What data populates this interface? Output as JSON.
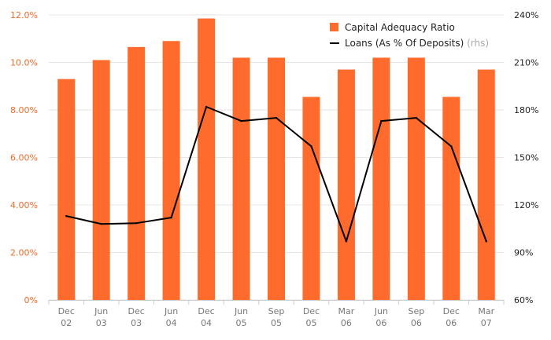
{
  "chart_data": {
    "type": "bar",
    "categories": [
      [
        "Dec",
        "02"
      ],
      [
        "Jun",
        "03"
      ],
      [
        "Dec",
        "03"
      ],
      [
        "Jun",
        "04"
      ],
      [
        "Dec",
        "04"
      ],
      [
        "Jun",
        "05"
      ],
      [
        "Sep",
        "05"
      ],
      [
        "Dec",
        "05"
      ],
      [
        "Mar",
        "06"
      ],
      [
        "Jun",
        "06"
      ],
      [
        "Sep",
        "06"
      ],
      [
        "Dec",
        "06"
      ],
      [
        "Mar",
        "07"
      ]
    ],
    "series": [
      {
        "name": "Capital Adequacy Ratio",
        "type": "bar",
        "axis": "left",
        "color": "#fe6b2c",
        "values": [
          9.3,
          10.1,
          10.65,
          10.9,
          11.85,
          10.2,
          10.2,
          8.55,
          9.7,
          10.2,
          10.2,
          8.55,
          9.7
        ]
      },
      {
        "name": "Loans (As % Of Deposits)",
        "name_suffix": "(rhs)",
        "type": "line",
        "axis": "right",
        "color": "#000000",
        "values": [
          113,
          108,
          108.5,
          112,
          182,
          173,
          175,
          157,
          97,
          173,
          175,
          157,
          97
        ]
      }
    ],
    "y_left": {
      "min": 0,
      "max": 12,
      "ticks": [
        0,
        2,
        4,
        6,
        8,
        10,
        12
      ],
      "tick_labels": [
        "0%",
        "2.00%",
        "4.00%",
        "6.00%",
        "8.00%",
        "10.0%",
        "12.0%"
      ]
    },
    "y_right": {
      "min": 60,
      "max": 240,
      "ticks": [
        60,
        90,
        120,
        150,
        180,
        210,
        240
      ],
      "tick_labels": [
        "60%",
        "90%",
        "120%",
        "150%",
        "180%",
        "210%",
        "240%"
      ]
    },
    "legend_position": "top-right",
    "grid": true
  }
}
